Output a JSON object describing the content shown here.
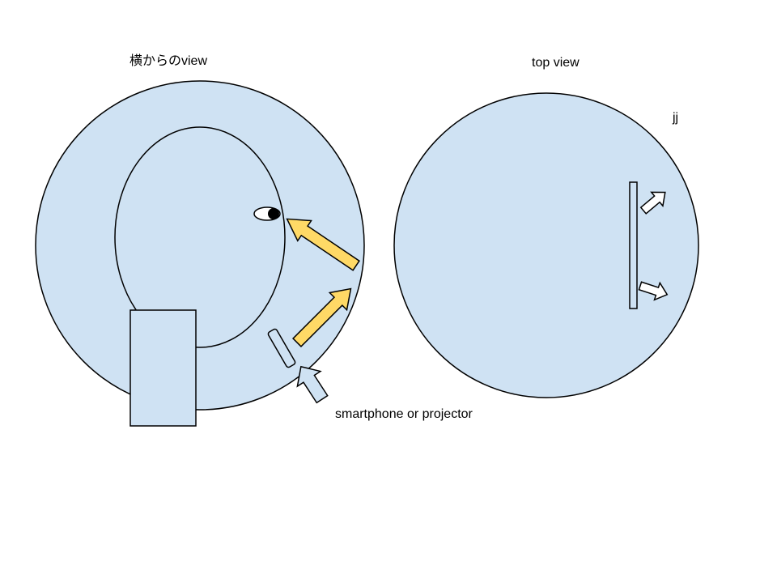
{
  "labels": {
    "side_view": "横からのview",
    "top_view": "top view",
    "stray": "jj",
    "device": "smartphone or projector"
  },
  "colors": {
    "fill": "#cfe2f3",
    "stroke": "#000000",
    "light_arrow": "#ffd966",
    "background": "#ffffff"
  }
}
